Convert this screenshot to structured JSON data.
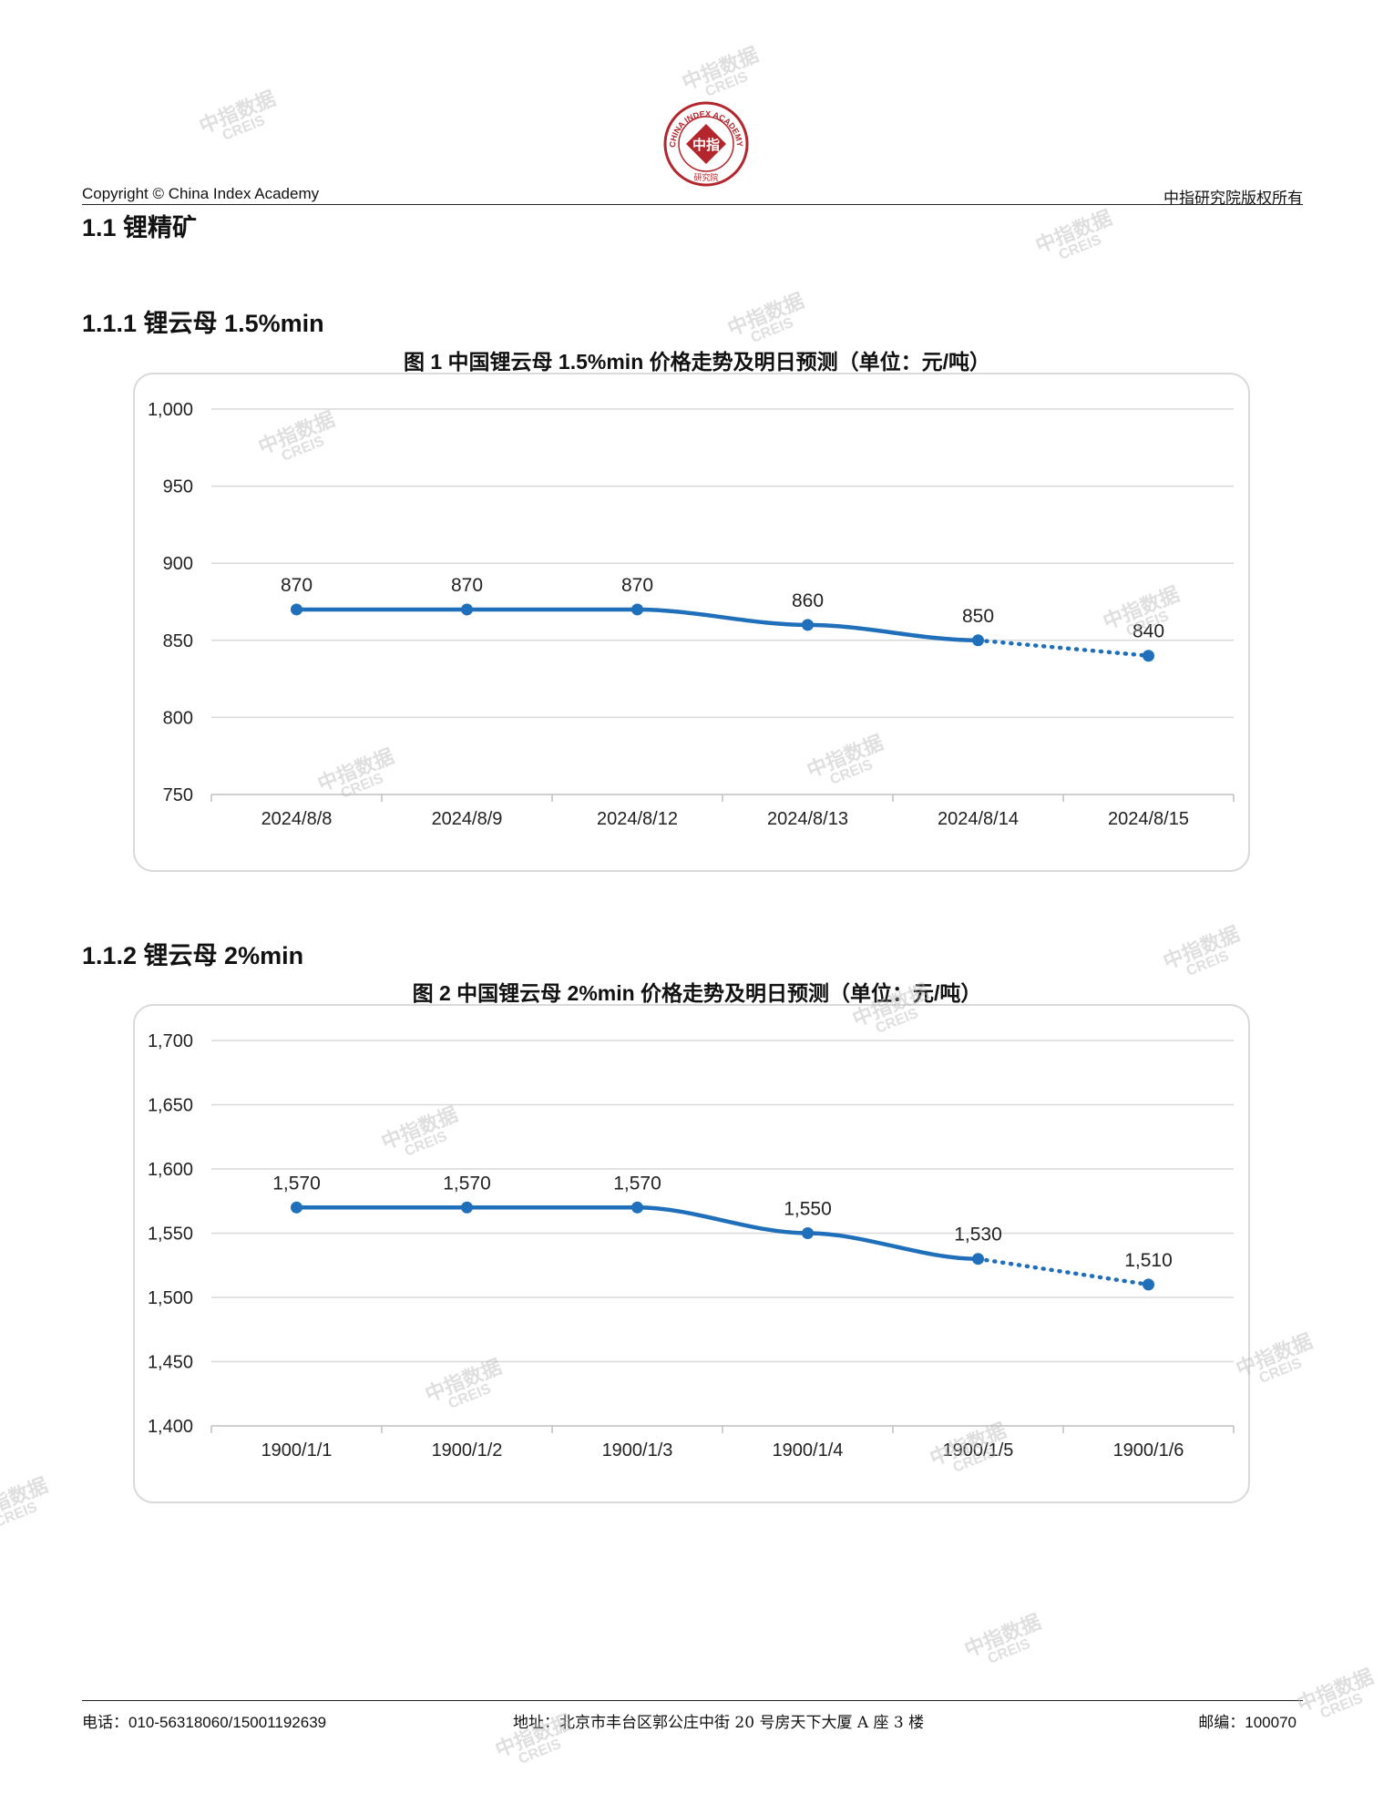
{
  "header": {
    "copyright": "Copyright © China Index Academy",
    "rights": "中指研究院版权所有",
    "logo": {
      "ring_text": "CHINA INDEX ACADEMY",
      "center_text": "中指",
      "bottom_text": "研究院"
    }
  },
  "watermark": {
    "line1": "中指数据",
    "line2": "CREIS"
  },
  "sections": {
    "s1": "1.1 锂精矿",
    "s11": "1.1.1 锂云母 1.5%min",
    "s12": "1.1.2 锂云母 2%min"
  },
  "captions": {
    "c1": "图 1 中国锂云母 1.5%min 价格走势及明日预测（单位：元/吨）",
    "c2": "图 2 中国锂云母 2%min 价格走势及明日预测（单位：元/吨）"
  },
  "chart_data": [
    {
      "type": "line",
      "categories": [
        "2024/8/8",
        "2024/8/9",
        "2024/8/12",
        "2024/8/13",
        "2024/8/14",
        "2024/8/15"
      ],
      "values": [
        870,
        870,
        870,
        860,
        850,
        840
      ],
      "value_labels": [
        "870",
        "870",
        "870",
        "860",
        "850",
        "840"
      ],
      "forecast_from_index": 4,
      "ylim": [
        750,
        1000
      ],
      "yticks": [
        750,
        800,
        850,
        900,
        950,
        1000
      ],
      "ytick_labels": [
        "750",
        "800",
        "850",
        "900",
        "950",
        "1,000"
      ],
      "grid": true,
      "line_color": "#1f6fba"
    },
    {
      "type": "line",
      "categories": [
        "1900/1/1",
        "1900/1/2",
        "1900/1/3",
        "1900/1/4",
        "1900/1/5",
        "1900/1/6"
      ],
      "values": [
        1570,
        1570,
        1570,
        1550,
        1530,
        1510
      ],
      "value_labels": [
        "1,570",
        "1,570",
        "1,570",
        "1,550",
        "1,530",
        "1,510"
      ],
      "forecast_from_index": 4,
      "ylim": [
        1400,
        1700
      ],
      "yticks": [
        1400,
        1450,
        1500,
        1550,
        1600,
        1650,
        1700
      ],
      "ytick_labels": [
        "1,400",
        "1,450",
        "1,500",
        "1,550",
        "1,600",
        "1,650",
        "1,700"
      ],
      "grid": true,
      "line_color": "#1f6fba"
    }
  ],
  "footer": {
    "phone": "电话：010-56318060/15001192639",
    "address": "地址：北京市丰台区郭公庄中街 20 号房天下大厦 A 座 3 楼",
    "postcode": "邮编：100070"
  }
}
